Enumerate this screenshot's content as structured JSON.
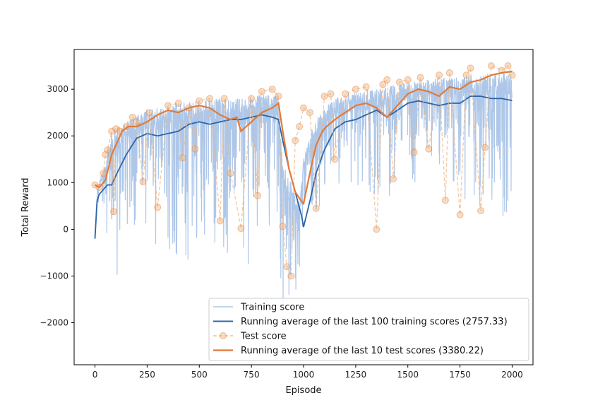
{
  "chart_data": {
    "type": "line",
    "title": "",
    "xlabel": "Episode",
    "ylabel": "Total Reward",
    "xlim": [
      -100,
      2100
    ],
    "ylim": [
      -2900,
      3850
    ],
    "xticks": [
      0,
      250,
      500,
      750,
      1000,
      1250,
      1500,
      1750,
      2000
    ],
    "yticks": [
      -2000,
      -1000,
      0,
      1000,
      2000,
      3000
    ],
    "grid": false,
    "legend_position": "lower-right",
    "colors": {
      "training": "#aec7e8",
      "training_avg": "#2b65a8",
      "test": "#f0b27a",
      "test_avg": "#e07b39"
    },
    "series": [
      {
        "name": "Training score",
        "style": "thin-line",
        "anchor_x": [
          0,
          10,
          20,
          40,
          60,
          80,
          100,
          120,
          150,
          200,
          250,
          300,
          400,
          500,
          550,
          600,
          650,
          700,
          750,
          800,
          850,
          880,
          900,
          920,
          940,
          960,
          980,
          1000,
          1050,
          1100,
          1150,
          1200,
          1250,
          1300,
          1350,
          1400,
          1450,
          1500,
          1550,
          1600,
          1650,
          1700,
          1750,
          1800,
          1850,
          1900,
          1950,
          2000
        ],
        "anchor_high": [
          -200,
          900,
          1000,
          1300,
          1700,
          2100,
          2200,
          2250,
          2300,
          2450,
          2550,
          2600,
          2700,
          2800,
          2800,
          2800,
          2800,
          2800,
          2850,
          2900,
          2850,
          2900,
          1500,
          1200,
          1000,
          800,
          600,
          1500,
          2300,
          2600,
          2800,
          2900,
          2950,
          3000,
          3000,
          3050,
          3100,
          3150,
          3200,
          3200,
          3250,
          3250,
          3250,
          3300,
          3300,
          3350,
          3350,
          3350
        ],
        "anchor_low": [
          -400,
          -100,
          300,
          500,
          -400,
          -1300,
          -1800,
          -500,
          0,
          0,
          -200,
          -700,
          -600,
          -800,
          -500,
          -200,
          -900,
          -700,
          -800,
          -700,
          -300,
          -800,
          -1800,
          -2100,
          -1600,
          -1500,
          -900,
          0,
          400,
          500,
          500,
          400,
          300,
          300,
          600,
          600,
          800,
          1000,
          1000,
          1200,
          1200,
          900,
          700,
          500,
          400,
          300,
          250,
          200
        ]
      },
      {
        "name": "Running average of the last 100 training scores (2757.33)",
        "x": [
          0,
          10,
          20,
          40,
          60,
          80,
          100,
          150,
          200,
          250,
          300,
          350,
          400,
          450,
          500,
          550,
          600,
          650,
          700,
          750,
          800,
          850,
          880,
          900,
          930,
          960,
          990,
          1000,
          1030,
          1060,
          1100,
          1150,
          1200,
          1250,
          1300,
          1350,
          1400,
          1450,
          1500,
          1550,
          1600,
          1650,
          1700,
          1750,
          1800,
          1850,
          1900,
          1950,
          2000
        ],
        "y": [
          -200,
          600,
          750,
          850,
          950,
          950,
          1150,
          1600,
          1950,
          2050,
          2000,
          2050,
          2100,
          2250,
          2300,
          2250,
          2300,
          2350,
          2350,
          2400,
          2450,
          2400,
          2350,
          1900,
          1300,
          800,
          300,
          50,
          600,
          1200,
          1700,
          2150,
          2300,
          2350,
          2450,
          2550,
          2400,
          2550,
          2700,
          2750,
          2700,
          2650,
          2700,
          2700,
          2850,
          2850,
          2800,
          2800,
          2757.33
        ]
      },
      {
        "name": "Test score",
        "style": "dashed-with-markers",
        "x": [
          0,
          20,
          40,
          50,
          60,
          80,
          90,
          100,
          120,
          150,
          180,
          200,
          230,
          260,
          300,
          350,
          400,
          420,
          450,
          480,
          500,
          550,
          600,
          620,
          650,
          700,
          750,
          780,
          800,
          850,
          880,
          900,
          920,
          940,
          960,
          980,
          1000,
          1030,
          1060,
          1100,
          1130,
          1150,
          1200,
          1250,
          1300,
          1350,
          1380,
          1400,
          1430,
          1460,
          1500,
          1530,
          1560,
          1600,
          1650,
          1680,
          1700,
          1750,
          1780,
          1800,
          1850,
          1870,
          1900,
          1950,
          1980,
          2000
        ],
        "y": [
          950,
          900,
          1200,
          1600,
          1700,
          2100,
          380,
          2150,
          2100,
          2200,
          2400,
          2300,
          1020,
          2500,
          470,
          2650,
          2700,
          1530,
          2600,
          1720,
          2750,
          2800,
          180,
          2800,
          1200,
          20,
          2800,
          720,
          2950,
          3000,
          2850,
          60,
          -800,
          -1000,
          1900,
          2200,
          2600,
          2500,
          450,
          2850,
          2900,
          1500,
          2900,
          3000,
          3050,
          0,
          3100,
          3200,
          1080,
          3150,
          3200,
          1650,
          3250,
          1720,
          3300,
          620,
          3350,
          310,
          3300,
          3450,
          400,
          1750,
          3500,
          3400,
          3500,
          3300
        ]
      },
      {
        "name": "Running average of the last 10 test scores (3380.22)",
        "x": [
          0,
          20,
          50,
          80,
          100,
          130,
          160,
          200,
          250,
          300,
          350,
          400,
          450,
          500,
          550,
          600,
          650,
          680,
          700,
          750,
          800,
          850,
          880,
          900,
          930,
          960,
          990,
          1000,
          1030,
          1060,
          1090,
          1110,
          1150,
          1200,
          1250,
          1300,
          1350,
          1400,
          1450,
          1500,
          1550,
          1600,
          1650,
          1700,
          1750,
          1800,
          1850,
          1900,
          1950,
          2000
        ],
        "y": [
          950,
          900,
          1050,
          1600,
          1800,
          2100,
          2200,
          2200,
          2300,
          2450,
          2550,
          2500,
          2600,
          2650,
          2600,
          2450,
          2350,
          2400,
          2100,
          2300,
          2500,
          2600,
          2700,
          2100,
          1300,
          800,
          600,
          550,
          1200,
          1800,
          2100,
          2200,
          2350,
          2500,
          2650,
          2700,
          2600,
          2400,
          2650,
          2900,
          3000,
          2950,
          2850,
          3050,
          3000,
          3150,
          3200,
          3300,
          3350,
          3380.22
        ]
      }
    ]
  }
}
